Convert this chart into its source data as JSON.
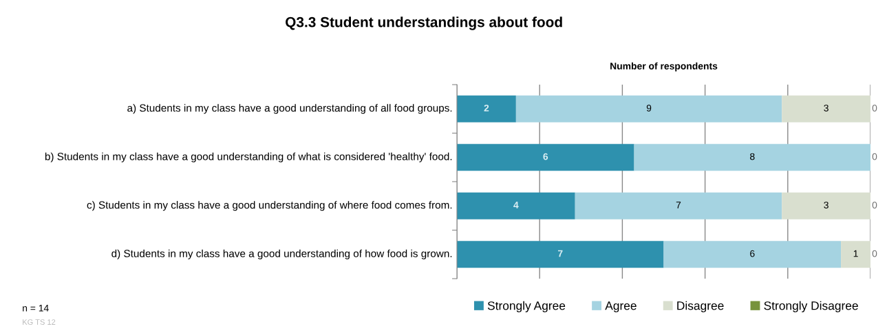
{
  "chart_data": {
    "type": "bar",
    "orientation": "horizontal",
    "stacked": true,
    "title": "Q3.3 Student understandings about food",
    "xlabel": "Number of respondents",
    "categories": [
      "a) Students in my class have a good understanding of all food groups.",
      "b) Students in my class have a good understanding of what is considered 'healthy' food.",
      "c) Students in my class have a good understanding of where food comes from.",
      "d) Students in my class have a good understanding of how food is grown."
    ],
    "series": [
      {
        "name": "Strongly Agree",
        "color": "#2e91ae",
        "values": [
          2,
          6,
          4,
          7
        ]
      },
      {
        "name": "Agree",
        "color": "#a5d3e1",
        "values": [
          9,
          8,
          7,
          6
        ]
      },
      {
        "name": "Disagree",
        "color": "#d9dfcf",
        "values": [
          3,
          0,
          3,
          1
        ]
      },
      {
        "name": "Strongly Disagree",
        "color": "#77933c",
        "values": [
          0,
          0,
          0,
          0
        ],
        "value_labels": [
          "0",
          null,
          "0",
          "0"
        ]
      }
    ],
    "xlim": [
      0,
      14
    ],
    "xticks": [
      {
        "value": 0,
        "label": null
      },
      {
        "value": 2.8,
        "label": null
      },
      {
        "value": 5.6,
        "label": null
      },
      {
        "value": 8.4,
        "label": null
      },
      {
        "value": 11.2,
        "label": null
      },
      {
        "value": 14,
        "label": null
      }
    ],
    "tick_labels": "y",
    "grid": "x",
    "legend": "bottom right",
    "data_labels": true,
    "annotations": [
      "n = 14",
      "KG TS 12"
    ]
  }
}
